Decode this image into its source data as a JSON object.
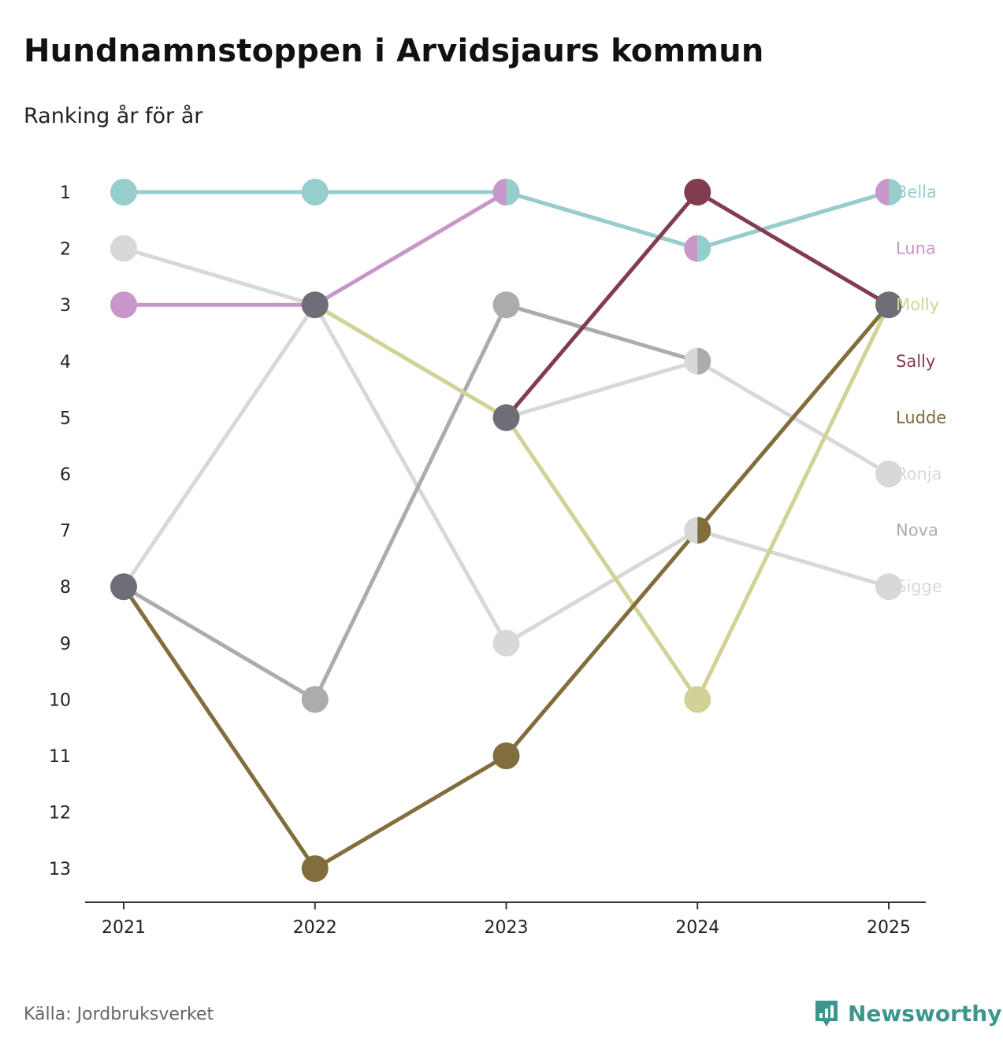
{
  "title": "Hundnamnstoppen i Arvidsjaurs kommun",
  "subtitle": "Ranking år för år",
  "source": "Källa: Jordbruksverket",
  "brand": {
    "name": "Newsworthy",
    "color": "#3c968c"
  },
  "chart_data": {
    "type": "line",
    "title": "Hundnamnstoppen i Arvidsjaurs kommun",
    "subtitle": "Ranking år för år",
    "xlabel": "",
    "ylabel": "",
    "x": [
      "2021",
      "2022",
      "2023",
      "2024",
      "2025"
    ],
    "y_ticks": [
      1,
      2,
      3,
      4,
      5,
      6,
      7,
      8,
      9,
      10,
      11,
      12,
      13
    ],
    "ylim": [
      1,
      13
    ],
    "y_inverted": true,
    "series": [
      {
        "name": "Sigge",
        "color": "#d8d8d8",
        "values": [
          2,
          3,
          9,
          7,
          8
        ]
      },
      {
        "name": "Ronja",
        "color": "#d8d8d8",
        "values": [
          8,
          3,
          5,
          4,
          6
        ]
      },
      {
        "name": "Nova",
        "color": "#acacac",
        "values": [
          8,
          10,
          3,
          4,
          null
        ]
      },
      {
        "name": "Molly",
        "color": "#d2d296",
        "values": [
          null,
          3,
          5,
          10,
          3
        ]
      },
      {
        "name": "Luna",
        "color": "#c896c8",
        "values": [
          3,
          3,
          1,
          2,
          1
        ]
      },
      {
        "name": "Bella",
        "color": "#96cdcd",
        "values": [
          1,
          1,
          1,
          2,
          1
        ]
      },
      {
        "name": "Ludde",
        "color": "#826e3c",
        "values": [
          8,
          13,
          11,
          7,
          3
        ]
      },
      {
        "name": "Sally",
        "color": "#823c50",
        "values": [
          null,
          null,
          5,
          1,
          3
        ]
      }
    ],
    "legend_order": [
      "Bella",
      "Luna",
      "Molly",
      "Sally",
      "Ludde",
      "Ronja",
      "Nova",
      "Sigge"
    ],
    "legend_position": "right",
    "tie_color": "#6e6e78"
  }
}
